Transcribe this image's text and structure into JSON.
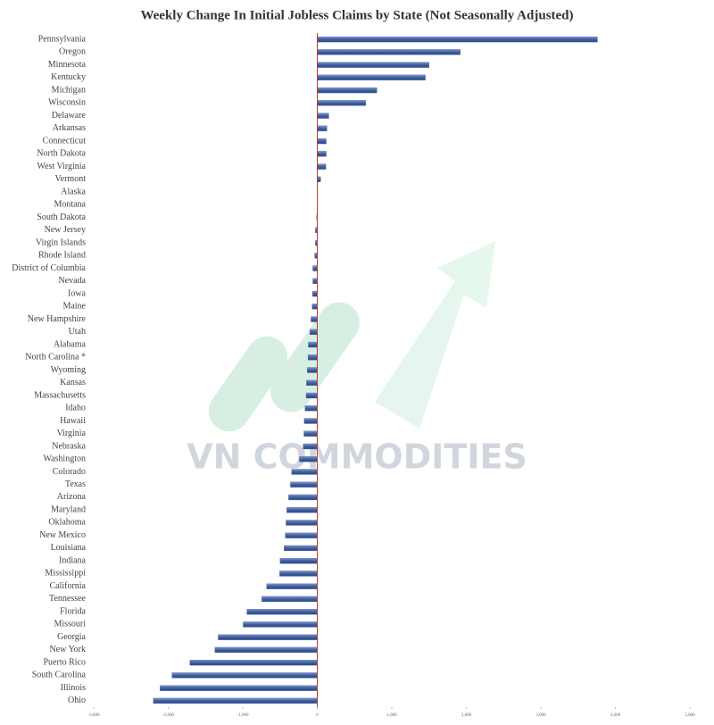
{
  "chart_data": {
    "type": "barh",
    "title": "Weekly Change In Initial Jobless Claims by State (Not Seasonally Adjusted)",
    "watermark": "VN COMMODITIES",
    "categories": [
      "Pennsylvania",
      "Oregon",
      "Minnesota",
      "Kentucky",
      "Michigan",
      "Wisconsin",
      "Delaware",
      "Arkansas",
      "Connecticut",
      "North Dakota",
      "West Virginia",
      "Vermont",
      "Alaska",
      "Montana",
      "South Dakota",
      "New Jersey",
      "Virgin Islands",
      "Rhode Island",
      "District of Columbia",
      "Nevada",
      "Iowa",
      "Maine",
      "New Hampshire",
      "Utah",
      "Alabama",
      "North Carolina *",
      "Wyoming",
      "Kansas",
      "Massachusetts",
      "Idaho",
      "Hawaii",
      "Virginia",
      "Nebraska",
      "Washington",
      "Colorado",
      "Texas",
      "Arizona",
      "Maryland",
      "Oklahoma",
      "New Mexico",
      "Louisiana",
      "Indiana",
      "Mississippi",
      "California",
      "Tennessee",
      "Florida",
      "Missouri",
      "Georgia",
      "New York",
      "Puerto Rico",
      "South Carolina",
      "Illinois",
      "Ohio"
    ],
    "values": [
      3760,
      1920,
      1500,
      1450,
      800,
      650,
      155,
      130,
      120,
      120,
      115,
      45,
      5,
      0,
      -10,
      -25,
      -25,
      -35,
      -60,
      -60,
      -65,
      -70,
      -85,
      -100,
      -120,
      -125,
      -135,
      -145,
      -150,
      -165,
      -175,
      -180,
      -190,
      -240,
      -345,
      -360,
      -385,
      -410,
      -420,
      -430,
      -445,
      -500,
      -505,
      -680,
      -745,
      -945,
      -995,
      -1330,
      -1375,
      -1710,
      -1950,
      -2110,
      -2200
    ],
    "color": "#4a67a6",
    "zero_line_color": "#c0392b",
    "xlim": [
      -3000,
      5000
    ],
    "xticks": [
      {
        "value": -3000,
        "label": "-3,000"
      },
      {
        "value": -2000,
        "label": "-2,000"
      },
      {
        "value": -1000,
        "label": "-1,000"
      },
      0,
      {
        "value": 1000,
        "label": "1,000"
      },
      {
        "value": 2000,
        "label": "2,000"
      },
      {
        "value": 3000,
        "label": "3,000"
      },
      {
        "value": 4000,
        "label": "4,000"
      },
      {
        "value": 5000,
        "label": "5,000"
      }
    ]
  }
}
